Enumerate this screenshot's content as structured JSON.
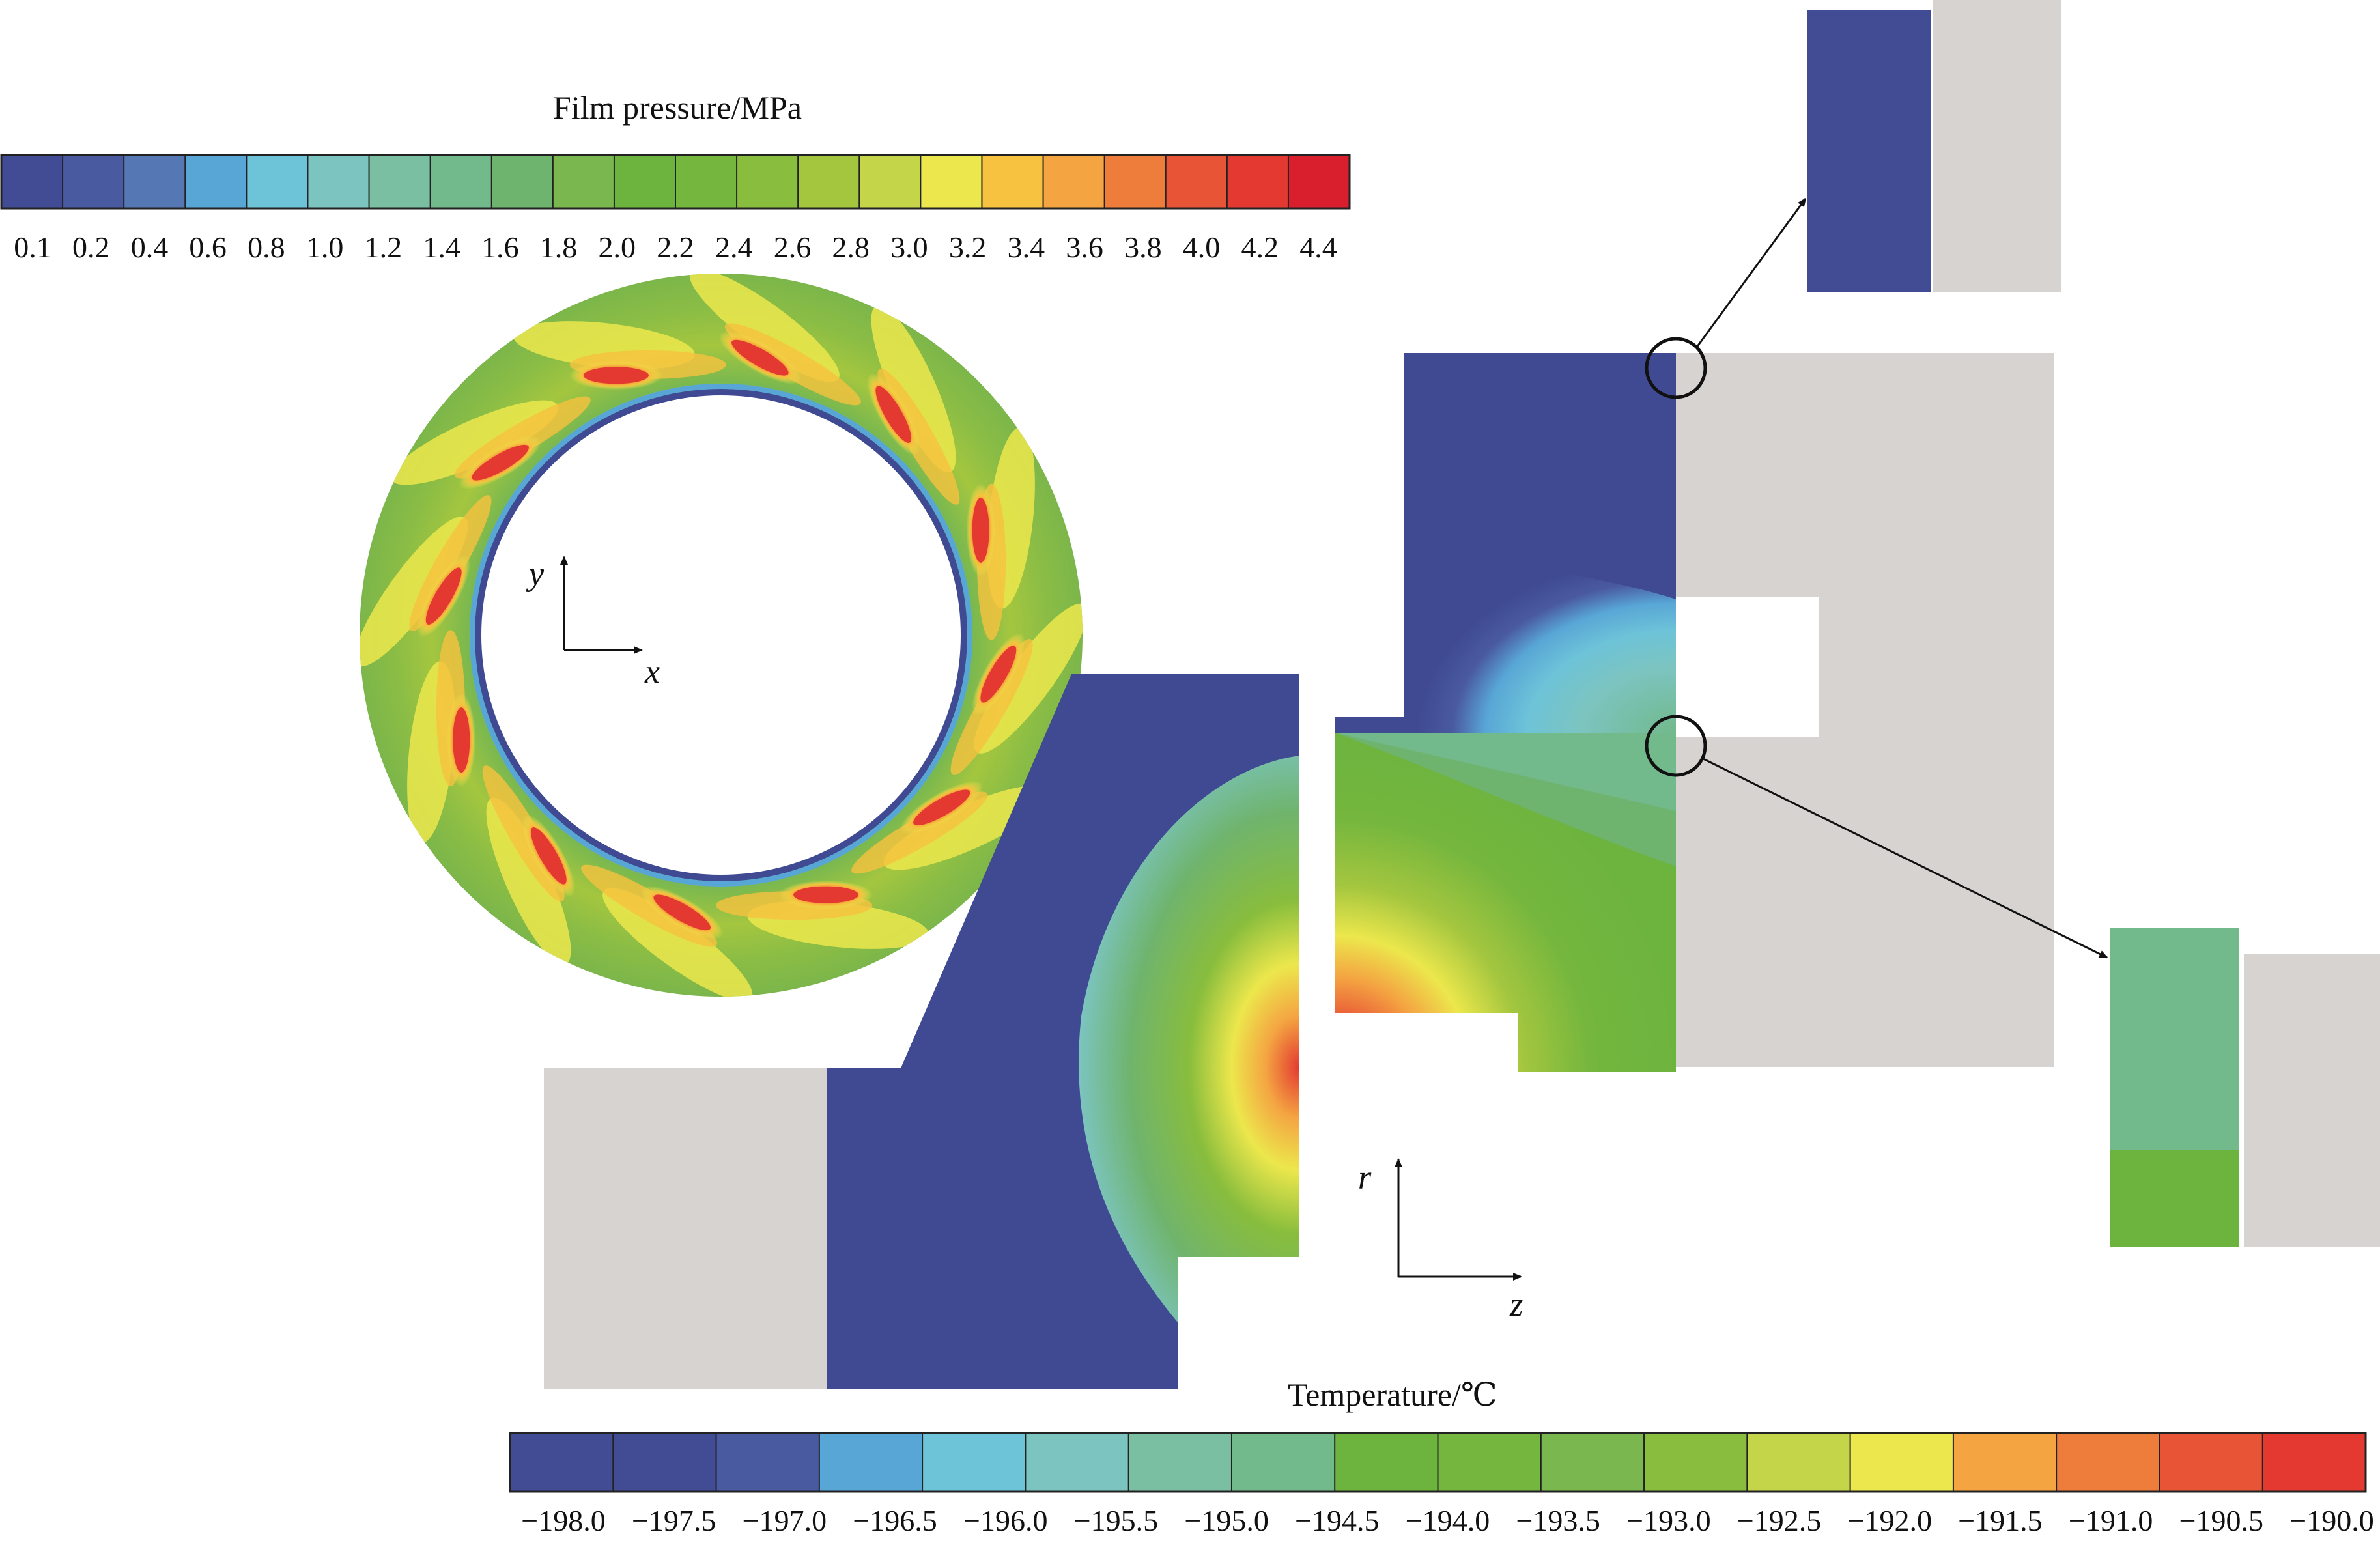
{
  "pressure_legend": {
    "title": "Film pressure/MPa",
    "ticks": [
      "0.1",
      "0.2",
      "0.4",
      "0.6",
      "0.8",
      "1.0",
      "1.2",
      "1.4",
      "1.6",
      "1.8",
      "2.0",
      "2.2",
      "2.4",
      "2.6",
      "2.8",
      "3.0",
      "3.2",
      "3.4",
      "3.6",
      "3.8",
      "4.0",
      "4.2",
      "4.4"
    ]
  },
  "temperature_legend": {
    "title": "Temperature/℃",
    "ticks": [
      "−198.0",
      "−197.5",
      "−197.0",
      "−196.5",
      "−196.0",
      "−195.5",
      "−195.0",
      "−194.5",
      "−194.0",
      "−193.5",
      "−193.0",
      "−192.5",
      "−192.0",
      "−191.5",
      "−191.0",
      "−190.5",
      "−190.0"
    ]
  },
  "ring_axes": {
    "x_label": "x",
    "y_label": "y"
  },
  "section_axes": {
    "r_label": "r",
    "z_label": "z"
  },
  "colors": {
    "scale": [
      "#3f4a93",
      "#414c95",
      "#4a5aa0",
      "#5577b4",
      "#58a6d6",
      "#6dc3d8",
      "#7cc4c0",
      "#7bbfa2",
      "#72b98c",
      "#6fb46e",
      "#7ab84f",
      "#6db43f",
      "#74b63e",
      "#88bd3d",
      "#a4c63f",
      "#c4d54a",
      "#ece74c",
      "#f6c23f",
      "#f4a542",
      "#ee7c3a",
      "#e85536",
      "#e33931",
      "#d91f2d"
    ],
    "solid_grey": "#d6d3d1"
  }
}
